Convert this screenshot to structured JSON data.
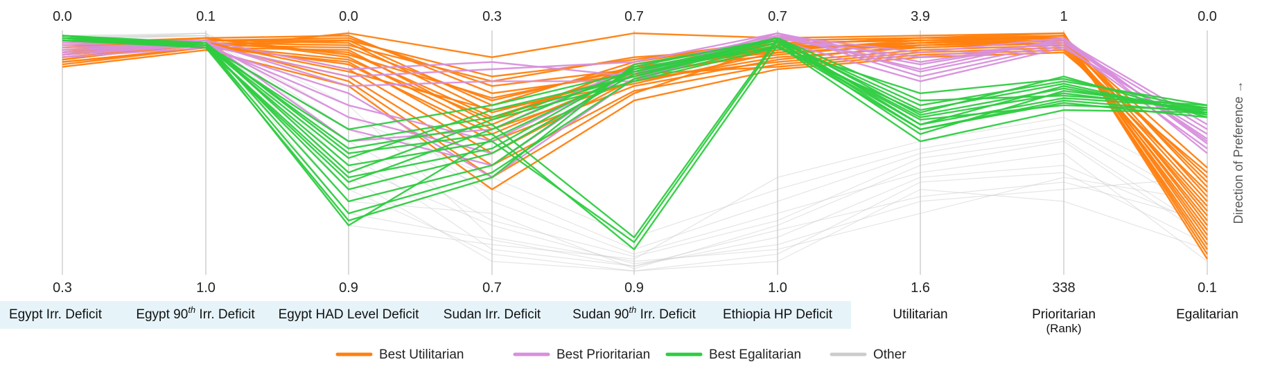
{
  "chart_data": {
    "type": "parallel-coordinates",
    "direction_label": "Direction of Preference →",
    "axes": [
      {
        "name": "Egypt Irr. Deficit",
        "top": "0.0",
        "bottom": "0.3",
        "group": "objective"
      },
      {
        "name": "Egypt 90th Irr. Deficit",
        "name_pre": "Egypt 90",
        "name_sup": "th",
        "name_post": " Irr. Deficit",
        "top": "0.1",
        "bottom": "1.0",
        "group": "objective"
      },
      {
        "name": "Egypt HAD Level Deficit",
        "top": "0.0",
        "bottom": "0.9",
        "group": "objective"
      },
      {
        "name": "Sudan Irr. Deficit",
        "top": "0.3",
        "bottom": "0.7",
        "group": "objective"
      },
      {
        "name": "Sudan 90th Irr. Deficit",
        "name_pre": "Sudan 90",
        "name_sup": "th",
        "name_post": " Irr. Deficit",
        "top": "0.7",
        "bottom": "0.9",
        "group": "objective"
      },
      {
        "name": "Ethiopia HP Deficit",
        "top": "0.7",
        "bottom": "1.0",
        "group": "objective"
      },
      {
        "name": "Utilitarian",
        "top": "3.9",
        "bottom": "1.6",
        "group": "principle"
      },
      {
        "name": "Prioritarian",
        "name_line2": "(Rank)",
        "top": "1",
        "bottom": "338",
        "group": "principle"
      },
      {
        "name": "Egalitarian",
        "top": "0.0",
        "bottom": "0.1",
        "group": "principle"
      }
    ],
    "legend": [
      {
        "label": "Best Utilitarian",
        "color": "#ff7f0e"
      },
      {
        "label": "Best Prioritarian",
        "color": "#d88fdc"
      },
      {
        "label": "Best Egalitarian",
        "color": "#2ecc40"
      },
      {
        "label": "Other",
        "color": "#cccccc"
      }
    ],
    "colors": {
      "highlight_band": "#e6f4fa",
      "axis": "#cfcfcf"
    },
    "series": [
      {
        "name": "Best Utilitarian",
        "color": "#ff7f0e",
        "lines": [
          [
            0.06,
            0.02,
            0.01,
            0.25,
            0.17,
            0.05,
            0.02,
            0.0,
            0.92
          ],
          [
            0.08,
            0.03,
            0.02,
            0.22,
            0.15,
            0.04,
            0.03,
            0.01,
            0.9
          ],
          [
            0.1,
            0.05,
            0.03,
            0.3,
            0.12,
            0.03,
            0.02,
            0.02,
            0.88
          ],
          [
            0.05,
            0.04,
            0.05,
            0.2,
            0.1,
            0.06,
            0.04,
            0.01,
            0.86
          ],
          [
            0.12,
            0.06,
            0.0,
            0.1,
            0.0,
            0.02,
            0.01,
            0.0,
            0.94
          ],
          [
            0.09,
            0.03,
            0.04,
            0.33,
            0.18,
            0.07,
            0.03,
            0.02,
            0.84
          ],
          [
            0.07,
            0.05,
            0.06,
            0.28,
            0.14,
            0.08,
            0.05,
            0.03,
            0.82
          ],
          [
            0.11,
            0.04,
            0.08,
            0.35,
            0.16,
            0.09,
            0.04,
            0.02,
            0.8
          ],
          [
            0.04,
            0.02,
            0.1,
            0.4,
            0.2,
            0.1,
            0.06,
            0.04,
            0.78
          ],
          [
            0.13,
            0.06,
            0.12,
            0.45,
            0.22,
            0.11,
            0.05,
            0.03,
            0.76
          ],
          [
            0.08,
            0.03,
            0.15,
            0.5,
            0.19,
            0.12,
            0.07,
            0.05,
            0.74
          ],
          [
            0.1,
            0.05,
            0.18,
            0.55,
            0.24,
            0.13,
            0.08,
            0.06,
            0.72
          ],
          [
            0.06,
            0.04,
            0.2,
            0.6,
            0.25,
            0.05,
            0.06,
            0.04,
            0.7
          ],
          [
            0.12,
            0.06,
            0.07,
            0.38,
            0.13,
            0.04,
            0.03,
            0.02,
            0.68
          ],
          [
            0.09,
            0.05,
            0.13,
            0.42,
            0.17,
            0.14,
            0.09,
            0.07,
            0.66
          ],
          [
            0.07,
            0.03,
            0.03,
            0.18,
            0.11,
            0.03,
            0.02,
            0.01,
            0.64
          ],
          [
            0.05,
            0.02,
            0.09,
            0.27,
            0.15,
            0.06,
            0.04,
            0.03,
            0.62
          ],
          [
            0.11,
            0.04,
            0.16,
            0.32,
            0.21,
            0.08,
            0.05,
            0.04,
            0.6
          ],
          [
            0.14,
            0.07,
            0.22,
            0.65,
            0.28,
            0.15,
            0.1,
            0.08,
            0.58
          ],
          [
            0.08,
            0.05,
            0.11,
            0.36,
            0.14,
            0.07,
            0.04,
            0.03,
            0.56
          ]
        ]
      },
      {
        "name": "Best Prioritarian",
        "color": "#d88fdc",
        "lines": [
          [
            0.05,
            0.03,
            0.15,
            0.12,
            0.18,
            0.0,
            0.12,
            0.03,
            0.45
          ],
          [
            0.07,
            0.04,
            0.22,
            0.2,
            0.2,
            0.01,
            0.15,
            0.02,
            0.5
          ],
          [
            0.09,
            0.05,
            0.3,
            0.45,
            0.16,
            0.02,
            0.1,
            0.04,
            0.4
          ],
          [
            0.06,
            0.04,
            0.35,
            0.5,
            0.17,
            0.0,
            0.18,
            0.05,
            0.48
          ],
          [
            0.08,
            0.05,
            0.4,
            0.55,
            0.15,
            0.03,
            0.2,
            0.06,
            0.42
          ],
          [
            0.1,
            0.06,
            0.25,
            0.6,
            0.19,
            0.02,
            0.13,
            0.03,
            0.38
          ],
          [
            0.04,
            0.03,
            0.45,
            0.4,
            0.14,
            0.01,
            0.08,
            0.02,
            0.46
          ],
          [
            0.07,
            0.05,
            0.18,
            0.15,
            0.12,
            0.0,
            0.16,
            0.04,
            0.44
          ]
        ]
      },
      {
        "name": "Best Egalitarian",
        "color": "#2ecc40",
        "lines": [
          [
            0.02,
            0.05,
            0.4,
            0.3,
            0.16,
            0.03,
            0.3,
            0.2,
            0.3
          ],
          [
            0.03,
            0.06,
            0.45,
            0.35,
            0.18,
            0.04,
            0.35,
            0.25,
            0.32
          ],
          [
            0.02,
            0.05,
            0.48,
            0.38,
            0.85,
            0.02,
            0.38,
            0.22,
            0.34
          ],
          [
            0.01,
            0.04,
            0.5,
            0.42,
            0.9,
            0.05,
            0.4,
            0.28,
            0.33
          ],
          [
            0.03,
            0.05,
            0.55,
            0.45,
            0.87,
            0.03,
            0.42,
            0.24,
            0.31
          ],
          [
            0.02,
            0.06,
            0.6,
            0.48,
            0.15,
            0.06,
            0.33,
            0.18,
            0.35
          ],
          [
            0.01,
            0.05,
            0.65,
            0.5,
            0.17,
            0.04,
            0.36,
            0.3,
            0.32
          ],
          [
            0.02,
            0.04,
            0.7,
            0.55,
            0.14,
            0.02,
            0.28,
            0.26,
            0.3
          ],
          [
            0.03,
            0.05,
            0.75,
            0.58,
            0.19,
            0.05,
            0.45,
            0.32,
            0.33
          ],
          [
            0.02,
            0.06,
            0.78,
            0.6,
            0.13,
            0.03,
            0.32,
            0.21,
            0.34
          ],
          [
            0.01,
            0.05,
            0.8,
            0.44,
            0.16,
            0.04,
            0.38,
            0.27,
            0.31
          ],
          [
            0.03,
            0.04,
            0.58,
            0.36,
            0.2,
            0.06,
            0.25,
            0.19,
            0.32
          ],
          [
            0.02,
            0.05,
            0.52,
            0.32,
            0.18,
            0.02,
            0.34,
            0.23,
            0.33
          ],
          [
            0.01,
            0.06,
            0.62,
            0.4,
            0.15,
            0.03,
            0.4,
            0.29,
            0.35
          ]
        ]
      },
      {
        "name": "Other",
        "color": "#cccccc",
        "lines": [
          [
            0.02,
            0.0,
            0.3,
            0.85,
            0.95,
            0.9,
            0.75,
            0.6,
            0.7
          ],
          [
            0.05,
            0.02,
            0.5,
            0.9,
            0.97,
            0.85,
            0.6,
            0.55,
            0.8
          ],
          [
            0.01,
            0.01,
            0.7,
            0.75,
            0.98,
            0.8,
            0.55,
            0.45,
            0.85
          ],
          [
            0.03,
            0.0,
            0.6,
            0.95,
            0.99,
            0.95,
            0.65,
            0.7,
            0.9
          ],
          [
            0.04,
            0.02,
            0.4,
            0.65,
            0.9,
            0.7,
            0.5,
            0.4,
            0.75
          ],
          [
            0.02,
            0.01,
            0.8,
            0.88,
            0.94,
            0.6,
            0.45,
            0.35,
            0.65
          ],
          [
            0.06,
            0.03,
            0.2,
            0.7,
            0.92,
            0.75,
            0.58,
            0.5,
            0.95
          ],
          [
            0.03,
            0.01,
            0.55,
            0.8,
            0.96,
            0.88,
            0.7,
            0.65,
            0.6
          ],
          [
            0.01,
            0.0,
            0.65,
            0.92,
            0.99,
            0.92,
            0.62,
            0.58,
            0.88
          ],
          [
            0.05,
            0.02,
            0.35,
            0.6,
            0.85,
            0.65,
            0.48,
            0.38,
            0.72
          ],
          [
            0.02,
            0.01,
            0.45,
            0.78,
            0.93,
            0.78,
            0.52,
            0.44,
            0.82
          ],
          [
            0.04,
            0.02,
            0.75,
            0.86,
            0.97,
            0.82,
            0.68,
            0.62,
            0.78
          ]
        ]
      }
    ]
  }
}
